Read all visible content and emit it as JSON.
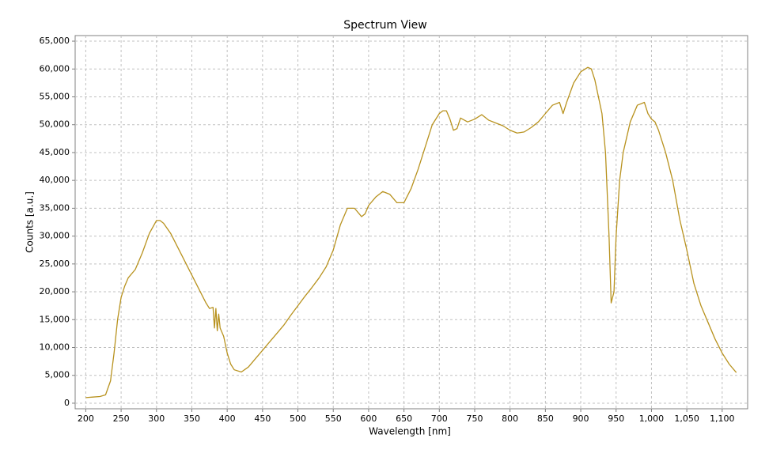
{
  "chart_data": {
    "type": "line",
    "title": "Spectrum View",
    "x_label": "Wavelength [nm]",
    "y_label": "Counts [a.u.]",
    "color": "#b8921e",
    "grid": true,
    "xlim": [
      185,
      1136
    ],
    "ylim": [
      -1000,
      66000
    ],
    "xticks": [
      200,
      250,
      300,
      350,
      400,
      450,
      500,
      550,
      600,
      650,
      700,
      750,
      800,
      850,
      900,
      950,
      {
        "value": 1000,
        "label": "1,000"
      },
      {
        "value": 1050,
        "label": "1,050"
      },
      {
        "value": 1100,
        "label": "1,100"
      }
    ],
    "yticks": [
      0,
      {
        "value": 5000,
        "label": "5,000"
      },
      {
        "value": 10000,
        "label": "10,000"
      },
      {
        "value": 15000,
        "label": "15,000"
      },
      {
        "value": 20000,
        "label": "20,000"
      },
      {
        "value": 25000,
        "label": "25,000"
      },
      {
        "value": 30000,
        "label": "30,000"
      },
      {
        "value": 35000,
        "label": "35,000"
      },
      {
        "value": 40000,
        "label": "40,000"
      },
      {
        "value": 45000,
        "label": "45,000"
      },
      {
        "value": 50000,
        "label": "50,000"
      },
      {
        "value": 55000,
        "label": "55,000"
      },
      {
        "value": 60000,
        "label": "60,000"
      },
      {
        "value": 65000,
        "label": "65,000"
      }
    ],
    "x": [
      200,
      210,
      220,
      228,
      235,
      240,
      245,
      250,
      255,
      260,
      270,
      280,
      290,
      300,
      305,
      310,
      320,
      330,
      340,
      350,
      360,
      370,
      375,
      380,
      382,
      384,
      386,
      388,
      390,
      395,
      400,
      405,
      410,
      420,
      430,
      440,
      450,
      460,
      470,
      480,
      490,
      500,
      510,
      520,
      530,
      540,
      550,
      560,
      570,
      580,
      590,
      595,
      600,
      610,
      620,
      630,
      640,
      650,
      660,
      670,
      680,
      690,
      700,
      705,
      710,
      715,
      720,
      725,
      730,
      740,
      750,
      760,
      770,
      780,
      790,
      800,
      810,
      820,
      830,
      840,
      850,
      860,
      870,
      875,
      880,
      890,
      900,
      910,
      915,
      920,
      930,
      935,
      940,
      943,
      947,
      950,
      955,
      960,
      970,
      980,
      990,
      995,
      1000,
      1005,
      1010,
      1015,
      1020,
      1030,
      1040,
      1050,
      1060,
      1070,
      1080,
      1090,
      1100,
      1110,
      1120
    ],
    "values": [
      1000,
      1100,
      1200,
      1500,
      4000,
      9000,
      15000,
      19000,
      21000,
      22500,
      24000,
      27000,
      30500,
      32800,
      32800,
      32300,
      30500,
      28000,
      25500,
      23000,
      20500,
      18000,
      17000,
      17200,
      13500,
      17000,
      13000,
      16000,
      13500,
      12000,
      9000,
      7000,
      6000,
      5600,
      6500,
      8000,
      9500,
      11000,
      12500,
      14000,
      15800,
      17500,
      19200,
      20800,
      22500,
      24500,
      27500,
      32000,
      35000,
      35000,
      33500,
      34000,
      35500,
      37000,
      38000,
      37500,
      36000,
      36000,
      38500,
      42000,
      46000,
      50000,
      52000,
      52500,
      52500,
      51000,
      49000,
      49300,
      51200,
      50500,
      51000,
      51800,
      50800,
      50300,
      49800,
      49000,
      48500,
      48700,
      49500,
      50500,
      52000,
      53500,
      54000,
      52000,
      54000,
      57500,
      59500,
      60300,
      60000,
      58000,
      52000,
      45000,
      30000,
      18000,
      20000,
      30000,
      40000,
      45000,
      50500,
      53500,
      54000,
      52000,
      51000,
      50500,
      49000,
      47000,
      45000,
      40000,
      33000,
      27500,
      21500,
      17500,
      14500,
      11500,
      9000,
      7000,
      5500
    ]
  }
}
